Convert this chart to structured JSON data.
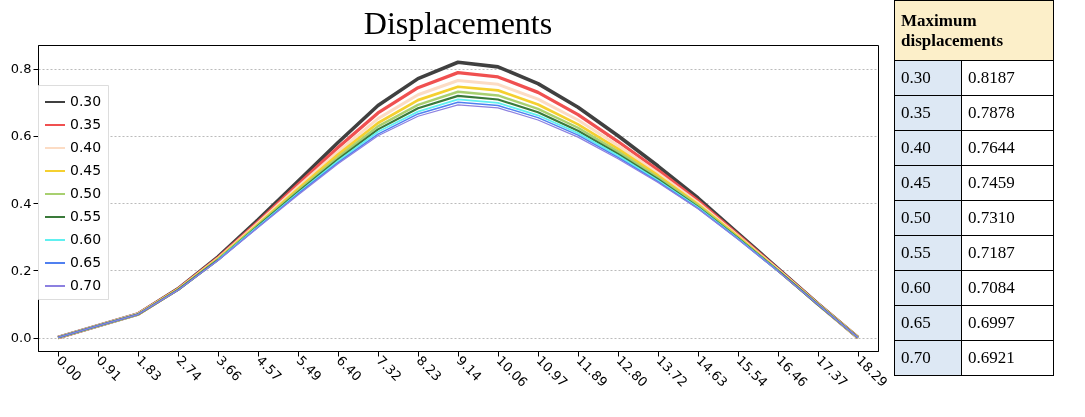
{
  "chart_data": {
    "type": "line",
    "title": "Displacements",
    "categories": [
      "0.00",
      "0.91",
      "1.83",
      "2.74",
      "3.66",
      "4.57",
      "5.49",
      "6.40",
      "7.32",
      "8.23",
      "9.14",
      "10.06",
      "10.97",
      "11.89",
      "12.80",
      "13.72",
      "14.63",
      "15.54",
      "16.46",
      "17.37",
      "18.29"
    ],
    "series": [
      {
        "name": "0.30",
        "color": "#404040",
        "values": [
          0,
          0.035,
          0.07,
          0.145,
          0.24,
          0.35,
          0.465,
          0.58,
          0.69,
          0.77,
          0.8187,
          0.805,
          0.755,
          0.685,
          0.6,
          0.51,
          0.415,
          0.31,
          0.205,
          0.1,
          0
        ]
      },
      {
        "name": "0.35",
        "color": "#f05050",
        "values": [
          0,
          0.035,
          0.07,
          0.144,
          0.237,
          0.344,
          0.455,
          0.565,
          0.668,
          0.743,
          0.7878,
          0.775,
          0.729,
          0.663,
          0.583,
          0.498,
          0.407,
          0.306,
          0.203,
          0.1,
          0
        ]
      },
      {
        "name": "0.40",
        "color": "#fcdcc4",
        "values": [
          0,
          0.035,
          0.07,
          0.143,
          0.235,
          0.34,
          0.448,
          0.553,
          0.651,
          0.722,
          0.7644,
          0.753,
          0.709,
          0.647,
          0.571,
          0.489,
          0.401,
          0.302,
          0.202,
          0.099,
          0
        ]
      },
      {
        "name": "0.45",
        "color": "#f5d030",
        "values": [
          null,
          null,
          0.069,
          0.143,
          0.234,
          0.337,
          0.442,
          0.544,
          0.638,
          0.706,
          0.7459,
          0.735,
          0.693,
          0.634,
          0.561,
          0.482,
          0.396,
          0.3,
          0.2,
          0.099,
          0
        ]
      },
      {
        "name": "0.50",
        "color": "#a8d070",
        "values": [
          0,
          0.035,
          0.069,
          0.142,
          0.232,
          0.334,
          0.437,
          0.536,
          0.628,
          0.692,
          0.731,
          0.72,
          0.68,
          0.624,
          0.553,
          0.476,
          0.393,
          0.297,
          0.199,
          0.099,
          0
        ]
      },
      {
        "name": "0.55",
        "color": "#3a7a3a",
        "values": [
          0,
          0.035,
          0.069,
          0.142,
          0.231,
          0.332,
          0.433,
          0.53,
          0.619,
          0.682,
          0.7187,
          0.708,
          0.67,
          0.615,
          0.546,
          0.471,
          0.389,
          0.296,
          0.199,
          0.098,
          0
        ]
      },
      {
        "name": "0.60",
        "color": "#60f0f0",
        "values": [
          null,
          null,
          null,
          null,
          0.231,
          0.33,
          0.429,
          0.525,
          0.612,
          0.672,
          0.7084,
          0.698,
          0.661,
          0.608,
          0.541,
          0.467,
          0.387,
          0.294,
          0.198,
          null,
          null
        ]
      },
      {
        "name": "0.65",
        "color": "#5080f0",
        "values": [
          0,
          0.035,
          0.069,
          0.141,
          0.23,
          0.328,
          0.427,
          0.52,
          0.605,
          0.665,
          0.6997,
          0.69,
          0.654,
          0.602,
          0.536,
          0.464,
          0.384,
          0.293,
          0.198,
          0.098,
          0
        ]
      },
      {
        "name": "0.70",
        "color": "#8c80e0",
        "values": [
          0,
          0.035,
          0.069,
          0.141,
          0.229,
          0.327,
          0.424,
          0.517,
          0.6,
          0.658,
          0.6921,
          0.683,
          0.647,
          0.596,
          0.532,
          0.461,
          0.383,
          0.292,
          0.197,
          0.098,
          0
        ]
      }
    ],
    "ylim": [
      -0.04,
      0.87
    ],
    "yticks": [
      {
        "value": 0,
        "label": "0.0"
      },
      0.2,
      0.4,
      0.6,
      0.8
    ],
    "grid": "y",
    "legend": "left",
    "marker": "none",
    "line_style": "solid",
    "annotations": [
      "Maximum displacements",
      "0.30",
      "0.8187",
      "0.35",
      "0.7878",
      "0.40",
      "0.7644",
      "0.45",
      "0.7459",
      "0.50",
      "0.7310",
      "0.55",
      "0.7187",
      "0.60",
      "0.7084",
      "0.65",
      "0.6997",
      "0.70",
      "0.6921"
    ]
  }
}
